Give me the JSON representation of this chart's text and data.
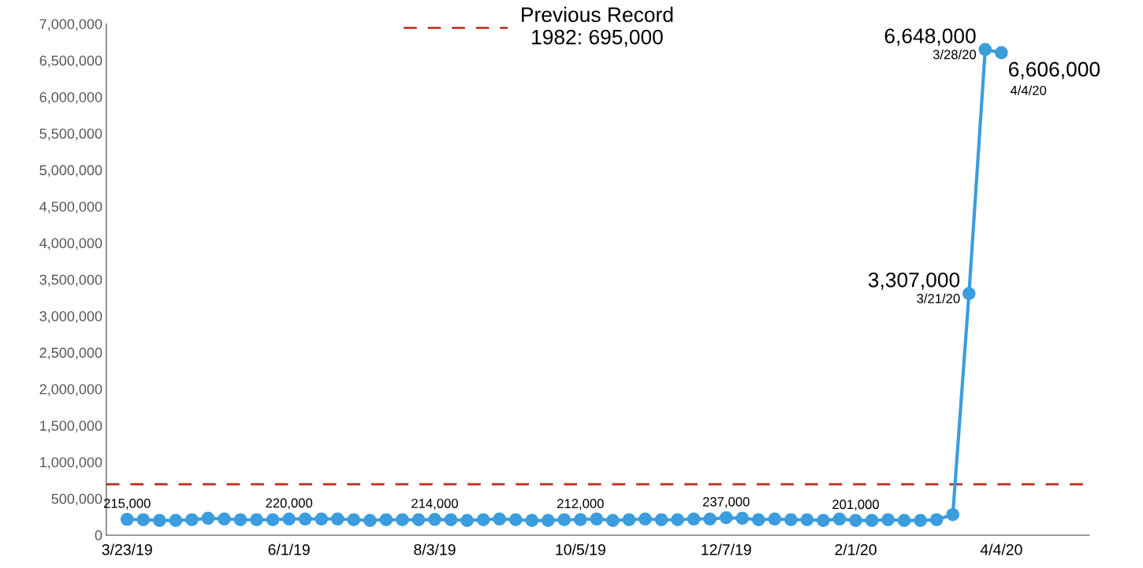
{
  "chart_data": {
    "type": "line",
    "x": [
      "2019-03-23",
      "2019-03-30",
      "2019-04-06",
      "2019-04-13",
      "2019-04-20",
      "2019-04-27",
      "2019-05-04",
      "2019-05-11",
      "2019-05-18",
      "2019-05-25",
      "2019-06-01",
      "2019-06-08",
      "2019-06-15",
      "2019-06-22",
      "2019-06-29",
      "2019-07-06",
      "2019-07-13",
      "2019-07-20",
      "2019-07-27",
      "2019-08-03",
      "2019-08-10",
      "2019-08-17",
      "2019-08-24",
      "2019-08-31",
      "2019-09-07",
      "2019-09-14",
      "2019-09-21",
      "2019-09-28",
      "2019-10-05",
      "2019-10-12",
      "2019-10-19",
      "2019-10-26",
      "2019-11-02",
      "2019-11-09",
      "2019-11-16",
      "2019-11-23",
      "2019-11-30",
      "2019-12-07",
      "2019-12-14",
      "2019-12-21",
      "2019-12-28",
      "2020-01-04",
      "2020-01-11",
      "2020-01-18",
      "2020-01-25",
      "2020-02-01",
      "2020-02-08",
      "2020-02-15",
      "2020-02-22",
      "2020-02-29",
      "2020-03-07",
      "2020-03-14",
      "2020-03-21",
      "2020-03-28",
      "2020-04-04"
    ],
    "series": [
      {
        "color": "#3b9ddd",
        "values": [
          215000,
          210000,
          200000,
          200000,
          210000,
          230000,
          220000,
          210000,
          210000,
          210000,
          220000,
          220000,
          220000,
          220000,
          210000,
          200000,
          210000,
          210000,
          210000,
          214000,
          210000,
          200000,
          210000,
          220000,
          210000,
          200000,
          200000,
          210000,
          212000,
          220000,
          200000,
          210000,
          220000,
          210000,
          210000,
          220000,
          220000,
          237000,
          230000,
          210000,
          220000,
          210000,
          210000,
          200000,
          220000,
          201000,
          200000,
          210000,
          200000,
          200000,
          210000,
          280000,
          3307000,
          6648000,
          6606000
        ],
        "value_labels": [
          "215,000",
          null,
          null,
          null,
          null,
          null,
          null,
          null,
          null,
          null,
          "220,000",
          null,
          null,
          null,
          null,
          null,
          null,
          null,
          null,
          "214,000",
          null,
          null,
          null,
          null,
          null,
          null,
          null,
          null,
          "212,000",
          null,
          null,
          null,
          null,
          null,
          null,
          null,
          null,
          "237,000",
          null,
          null,
          null,
          null,
          null,
          null,
          null,
          "201,000",
          null,
          null,
          null,
          null,
          null,
          null,
          "3,307,000",
          "6,648,000",
          "6,606,000"
        ]
      }
    ],
    "marker": "circle",
    "line_style": "solid",
    "grid": false,
    "legend": "top",
    "xlim": [
      "2019-03-14",
      "2020-05-12"
    ],
    "xticks": [
      {
        "value": "2019-03-23",
        "label": "3/23/19"
      },
      {
        "value": "2019-06-01",
        "label": "6/1/19"
      },
      {
        "value": "2019-08-03",
        "label": "8/3/19"
      },
      {
        "value": "2019-10-05",
        "label": "10/5/19"
      },
      {
        "value": "2019-12-07",
        "label": "12/7/19"
      },
      {
        "value": "2020-02-01",
        "label": "2/1/20"
      },
      {
        "value": "2020-04-04",
        "label": "4/4/20"
      }
    ],
    "ylim": [
      0,
      7000000
    ],
    "yticks": [
      {
        "value": 0,
        "label": "0"
      },
      {
        "value": 500000,
        "label": "500,000"
      },
      {
        "value": 1000000,
        "label": "1,000,000"
      },
      {
        "value": 1500000,
        "label": "1,500,000"
      },
      {
        "value": 2000000,
        "label": "2,000,000"
      },
      {
        "value": 2500000,
        "label": "2,500,000"
      },
      {
        "value": 3000000,
        "label": "3,000,000"
      },
      {
        "value": 3500000,
        "label": "3,500,000"
      },
      {
        "value": 4000000,
        "label": "4,000,000"
      },
      {
        "value": 4500000,
        "label": "4,500,000"
      },
      {
        "value": 5000000,
        "label": "5,000,000"
      },
      {
        "value": 5500000,
        "label": "5,500,000"
      },
      {
        "value": 6000000,
        "label": "6,000,000"
      },
      {
        "value": 6500000,
        "label": "6,500,000"
      },
      {
        "value": 7000000,
        "label": "7,000,000"
      }
    ],
    "ref_lines": [
      {
        "axis": "y",
        "value": 695000,
        "label": "Previous Record\n1982: 695,000",
        "color": "#c0392b",
        "line_style": "dashed"
      }
    ],
    "annotations": [
      {
        "text": "3/21/20",
        "x": "2020-03-21",
        "y": 3307000
      },
      {
        "text": "3/28/20",
        "x": "2020-03-28",
        "y": 6648000
      },
      {
        "text": "4/4/20",
        "x": "2020-04-04",
        "y": 6606000
      }
    ]
  }
}
